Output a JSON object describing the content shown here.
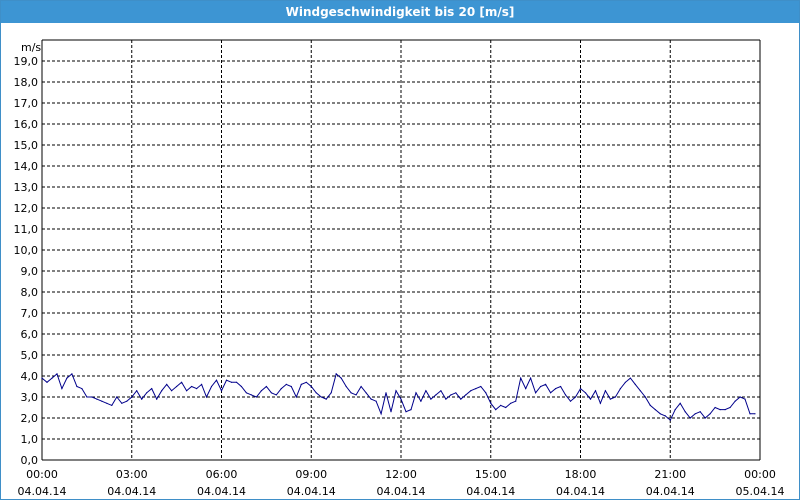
{
  "chart_data": {
    "type": "line",
    "title": "Windgeschwindigkeit bis 20 [m/s]",
    "ylabel": "m/s",
    "ylim": [
      0,
      20
    ],
    "grid": true,
    "y_ticks": [
      "0,0",
      "1,0",
      "2,0",
      "3,0",
      "4,0",
      "5,0",
      "6,0",
      "7,0",
      "8,0",
      "9,0",
      "10,0",
      "11,0",
      "12,0",
      "13,0",
      "14,0",
      "15,0",
      "16,0",
      "17,0",
      "18,0",
      "19,0"
    ],
    "x_ticks": [
      {
        "time": "00:00",
        "date": "04.04.14"
      },
      {
        "time": "03:00",
        "date": "04.04.14"
      },
      {
        "time": "06:00",
        "date": "04.04.14"
      },
      {
        "time": "09:00",
        "date": "04.04.14"
      },
      {
        "time": "12:00",
        "date": "04.04.14"
      },
      {
        "time": "15:00",
        "date": "04.04.14"
      },
      {
        "time": "18:00",
        "date": "04.04.14"
      },
      {
        "time": "21:00",
        "date": "04.04.14"
      },
      {
        "time": "00:00",
        "date": "05.04.14"
      }
    ],
    "xlim": [
      "04.04.14 00:00",
      "05.04.14 00:00"
    ],
    "series": [
      {
        "color": "#00008b",
        "points": [
          [
            "00:00",
            3.9
          ],
          [
            "00:10",
            3.7
          ],
          [
            "00:20",
            3.9
          ],
          [
            "00:30",
            4.1
          ],
          [
            "00:40",
            3.4
          ],
          [
            "00:50",
            3.9
          ],
          [
            "01:00",
            4.1
          ],
          [
            "01:10",
            3.5
          ],
          [
            "01:20",
            3.4
          ],
          [
            "01:30",
            3.0
          ],
          [
            "01:40",
            3.0
          ],
          [
            "01:50",
            2.9
          ],
          [
            "02:00",
            2.8
          ],
          [
            "02:10",
            2.7
          ],
          [
            "02:20",
            2.6
          ],
          [
            "02:30",
            3.0
          ],
          [
            "02:40",
            2.7
          ],
          [
            "02:50",
            2.8
          ],
          [
            "03:00",
            3.0
          ],
          [
            "03:10",
            3.3
          ],
          [
            "03:20",
            2.9
          ],
          [
            "03:30",
            3.2
          ],
          [
            "03:40",
            3.4
          ],
          [
            "03:50",
            2.9
          ],
          [
            "04:00",
            3.3
          ],
          [
            "04:10",
            3.6
          ],
          [
            "04:20",
            3.3
          ],
          [
            "04:30",
            3.5
          ],
          [
            "04:40",
            3.7
          ],
          [
            "04:50",
            3.3
          ],
          [
            "05:00",
            3.5
          ],
          [
            "05:10",
            3.4
          ],
          [
            "05:20",
            3.6
          ],
          [
            "05:30",
            3.0
          ],
          [
            "05:40",
            3.5
          ],
          [
            "05:50",
            3.8
          ],
          [
            "06:00",
            3.3
          ],
          [
            "06:10",
            3.8
          ],
          [
            "06:20",
            3.7
          ],
          [
            "06:30",
            3.7
          ],
          [
            "06:40",
            3.5
          ],
          [
            "06:50",
            3.2
          ],
          [
            "07:00",
            3.1
          ],
          [
            "07:10",
            3.0
          ],
          [
            "07:20",
            3.3
          ],
          [
            "07:30",
            3.5
          ],
          [
            "07:40",
            3.2
          ],
          [
            "07:50",
            3.1
          ],
          [
            "08:00",
            3.4
          ],
          [
            "08:10",
            3.6
          ],
          [
            "08:20",
            3.5
          ],
          [
            "08:30",
            3.0
          ],
          [
            "08:40",
            3.6
          ],
          [
            "08:50",
            3.7
          ],
          [
            "09:00",
            3.5
          ],
          [
            "09:10",
            3.2
          ],
          [
            "09:20",
            3.0
          ],
          [
            "09:30",
            2.9
          ],
          [
            "09:40",
            3.2
          ],
          [
            "09:50",
            4.1
          ],
          [
            "10:00",
            3.9
          ],
          [
            "10:10",
            3.5
          ],
          [
            "10:20",
            3.2
          ],
          [
            "10:30",
            3.1
          ],
          [
            "10:40",
            3.5
          ],
          [
            "10:50",
            3.2
          ],
          [
            "11:00",
            2.9
          ],
          [
            "11:10",
            2.8
          ],
          [
            "11:20",
            2.2
          ],
          [
            "11:30",
            3.2
          ],
          [
            "11:40",
            2.3
          ],
          [
            "11:50",
            3.3
          ],
          [
            "12:00",
            2.9
          ],
          [
            "12:10",
            2.3
          ],
          [
            "12:20",
            2.4
          ],
          [
            "12:30",
            3.2
          ],
          [
            "12:40",
            2.8
          ],
          [
            "12:50",
            3.3
          ],
          [
            "13:00",
            2.9
          ],
          [
            "13:10",
            3.1
          ],
          [
            "13:20",
            3.3
          ],
          [
            "13:30",
            2.9
          ],
          [
            "13:40",
            3.1
          ],
          [
            "13:50",
            3.2
          ],
          [
            "14:00",
            2.9
          ],
          [
            "14:10",
            3.1
          ],
          [
            "14:20",
            3.3
          ],
          [
            "14:30",
            3.4
          ],
          [
            "14:40",
            3.5
          ],
          [
            "14:50",
            3.2
          ],
          [
            "15:00",
            2.7
          ],
          [
            "15:10",
            2.4
          ],
          [
            "15:20",
            2.6
          ],
          [
            "15:30",
            2.5
          ],
          [
            "15:40",
            2.7
          ],
          [
            "15:50",
            2.8
          ],
          [
            "16:00",
            3.9
          ],
          [
            "16:10",
            3.4
          ],
          [
            "16:20",
            3.9
          ],
          [
            "16:30",
            3.2
          ],
          [
            "16:40",
            3.5
          ],
          [
            "16:50",
            3.6
          ],
          [
            "17:00",
            3.2
          ],
          [
            "17:10",
            3.4
          ],
          [
            "17:20",
            3.5
          ],
          [
            "17:30",
            3.1
          ],
          [
            "17:40",
            2.8
          ],
          [
            "17:50",
            3.0
          ],
          [
            "18:00",
            3.4
          ],
          [
            "18:10",
            3.2
          ],
          [
            "18:20",
            2.9
          ],
          [
            "18:30",
            3.3
          ],
          [
            "18:40",
            2.7
          ],
          [
            "18:50",
            3.3
          ],
          [
            "19:00",
            2.9
          ],
          [
            "19:10",
            3.0
          ],
          [
            "19:20",
            3.4
          ],
          [
            "19:30",
            3.7
          ],
          [
            "19:40",
            3.9
          ],
          [
            "19:50",
            3.6
          ],
          [
            "20:00",
            3.3
          ],
          [
            "20:10",
            3.0
          ],
          [
            "20:20",
            2.6
          ],
          [
            "20:30",
            2.4
          ],
          [
            "20:40",
            2.2
          ],
          [
            "20:50",
            2.1
          ],
          [
            "21:00",
            1.9
          ],
          [
            "21:10",
            2.4
          ],
          [
            "21:20",
            2.7
          ],
          [
            "21:30",
            2.3
          ],
          [
            "21:40",
            2.0
          ],
          [
            "21:50",
            2.2
          ],
          [
            "22:00",
            2.3
          ],
          [
            "22:10",
            2.0
          ],
          [
            "22:20",
            2.2
          ],
          [
            "22:30",
            2.5
          ],
          [
            "22:40",
            2.4
          ],
          [
            "22:50",
            2.4
          ],
          [
            "23:00",
            2.5
          ],
          [
            "23:10",
            2.8
          ],
          [
            "23:20",
            3.0
          ],
          [
            "23:30",
            2.9
          ],
          [
            "23:40",
            2.2
          ],
          [
            "23:50",
            2.2
          ]
        ]
      }
    ]
  }
}
